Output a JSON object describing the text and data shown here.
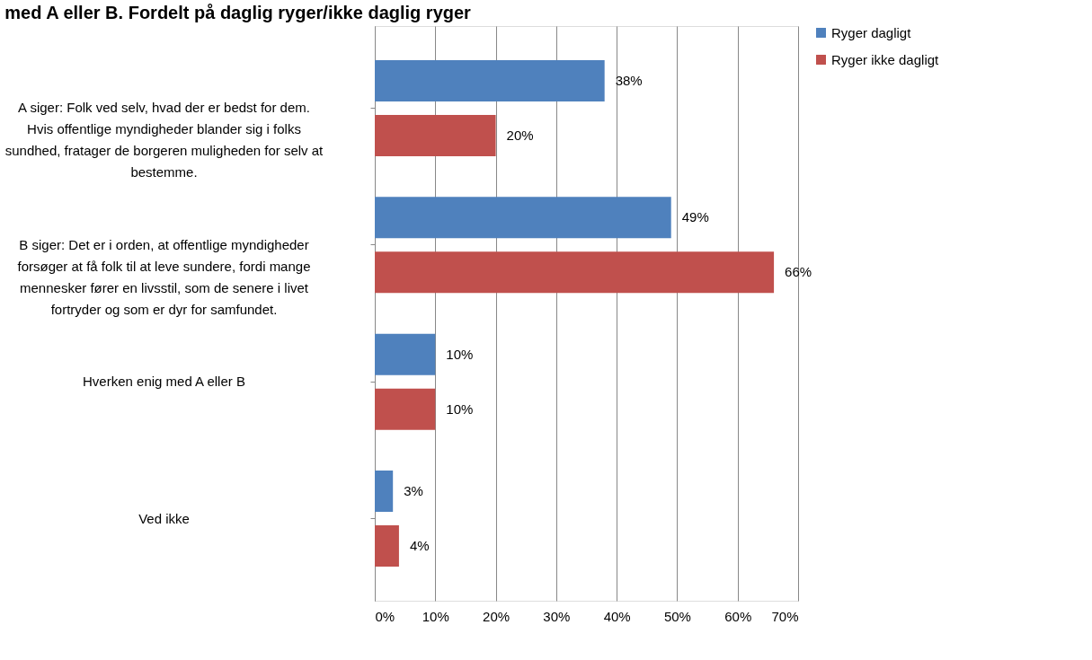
{
  "chart_data": {
    "type": "bar",
    "orientation": "horizontal",
    "title": "med A eller B. Fordelt på daglig ryger/ikke daglig ryger",
    "categories": [
      "A siger: Folk ved selv, hvad der er bedst for dem. Hvis offentlige myndigheder blander sig i folks sundhed, fratager de borgeren muligheden for selv at bestemme.",
      "B siger: Det er i orden, at offentlige myndigheder forsøger at få folk til at leve sundere, fordi mange mennesker fører en livsstil, som de senere i livet fortryder og som er dyr for samfundet.",
      "Hverken enig med A eller B",
      "Ved ikke"
    ],
    "series": [
      {
        "name": "Ryger dagligt",
        "color": "#4f81bd",
        "values": [
          38,
          49,
          10,
          3
        ],
        "value_labels": [
          "38%",
          "49%",
          "10%",
          "3%"
        ]
      },
      {
        "name": "Ryger ikke dagligt",
        "color": "#c0504d",
        "values": [
          20,
          66,
          10,
          4
        ],
        "value_labels": [
          "20%",
          "66%",
          "10%",
          "4%"
        ]
      }
    ],
    "xlim": [
      0,
      70
    ],
    "xticks": [
      {
        "value": 0,
        "label": "0%"
      },
      {
        "value": 10,
        "label": "10%"
      },
      {
        "value": 20,
        "label": "20%"
      },
      {
        "value": 30,
        "label": "30%"
      },
      {
        "value": 40,
        "label": "40%"
      },
      {
        "value": 50,
        "label": "50%"
      },
      {
        "value": 60,
        "label": "60%"
      },
      {
        "value": 70,
        "label": "70%"
      }
    ],
    "grid": "x",
    "legend": "right"
  }
}
